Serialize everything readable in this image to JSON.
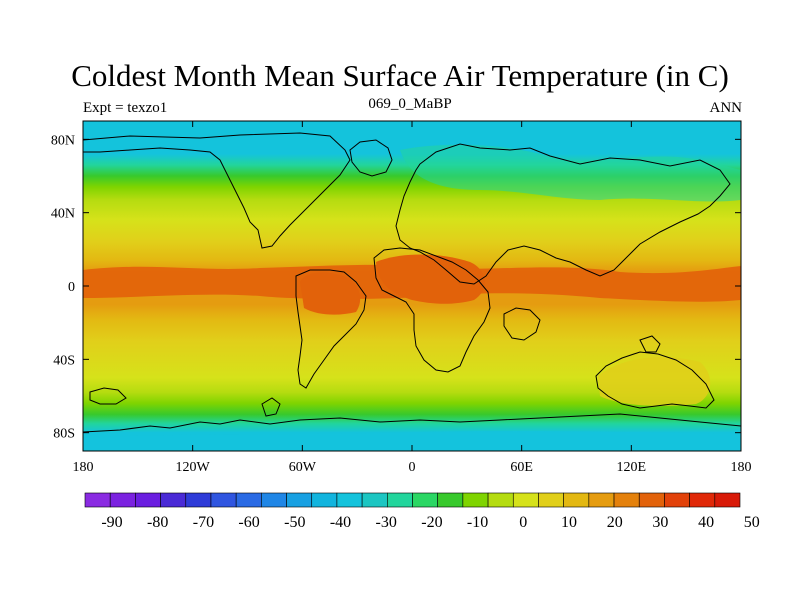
{
  "title": "Coldest Month Mean Surface Air Temperature (in C)",
  "subtitle_left": "Expt = texzo1",
  "subtitle_center": "069_0_MaBP",
  "subtitle_right": "ANN",
  "axes": {
    "lon_ticks": [
      {
        "value": -180,
        "label": "180"
      },
      {
        "value": -120,
        "label": "120W"
      },
      {
        "value": -60,
        "label": "60W"
      },
      {
        "value": 0,
        "label": "0"
      },
      {
        "value": 60,
        "label": "60E"
      },
      {
        "value": 120,
        "label": "120E"
      },
      {
        "value": 180,
        "label": "180"
      }
    ],
    "lat_ticks": [
      {
        "value": 80,
        "label": "80N"
      },
      {
        "value": 40,
        "label": "40N"
      },
      {
        "value": 0,
        "label": "0"
      },
      {
        "value": -40,
        "label": "40S"
      },
      {
        "value": -80,
        "label": "80S"
      }
    ],
    "lon_range": [
      -180,
      180
    ],
    "lat_range": [
      -90,
      90
    ]
  },
  "colorbar": {
    "colors": [
      "#8a2be2",
      "#7b22e0",
      "#6a1ee0",
      "#4a2ad6",
      "#2e3bd8",
      "#2f55e0",
      "#2a6ae4",
      "#1f86e6",
      "#17a0e2",
      "#12b4de",
      "#14c3dc",
      "#1cc6c2",
      "#22d59c",
      "#2bd764",
      "#38c92c",
      "#7fd400",
      "#b5dc10",
      "#d6e21a",
      "#e1cf1a",
      "#e3b812",
      "#e59c10",
      "#e4810c",
      "#e2620a",
      "#e2420a",
      "#e02808",
      "#d81a08"
    ],
    "labels": [
      "-90",
      "-80",
      "-70",
      "-60",
      "-50",
      "-40",
      "-30",
      "-20",
      "-10",
      "0",
      "10",
      "20",
      "30",
      "40",
      "50"
    ]
  },
  "map": {
    "bands": [
      {
        "lat": 90,
        "color": "#14c3dc"
      },
      {
        "lat": 72,
        "color": "#14c3dc"
      },
      {
        "lat": 66,
        "color": "#22d59c"
      },
      {
        "lat": 60,
        "color": "#38c92c"
      },
      {
        "lat": 54,
        "color": "#7fd400"
      },
      {
        "lat": 47,
        "color": "#b5dc10"
      },
      {
        "lat": 36,
        "color": "#d6e21a"
      },
      {
        "lat": 24,
        "color": "#e1cf1a"
      },
      {
        "lat": 14,
        "color": "#e3b812"
      },
      {
        "lat": 8,
        "color": "#e59c10"
      },
      {
        "lat": -10,
        "color": "#e59c10"
      },
      {
        "lat": -18,
        "color": "#e3b812"
      },
      {
        "lat": -30,
        "color": "#e1cf1a"
      },
      {
        "lat": -50,
        "color": "#d6e21a"
      },
      {
        "lat": -58,
        "color": "#b5dc10"
      },
      {
        "lat": -64,
        "color": "#7fd400"
      },
      {
        "lat": -70,
        "color": "#38c92c"
      },
      {
        "lat": -75,
        "color": "#22d59c"
      },
      {
        "lat": -80,
        "color": "#14c3dc"
      },
      {
        "lat": -90,
        "color": "#14c3dc"
      }
    ]
  }
}
